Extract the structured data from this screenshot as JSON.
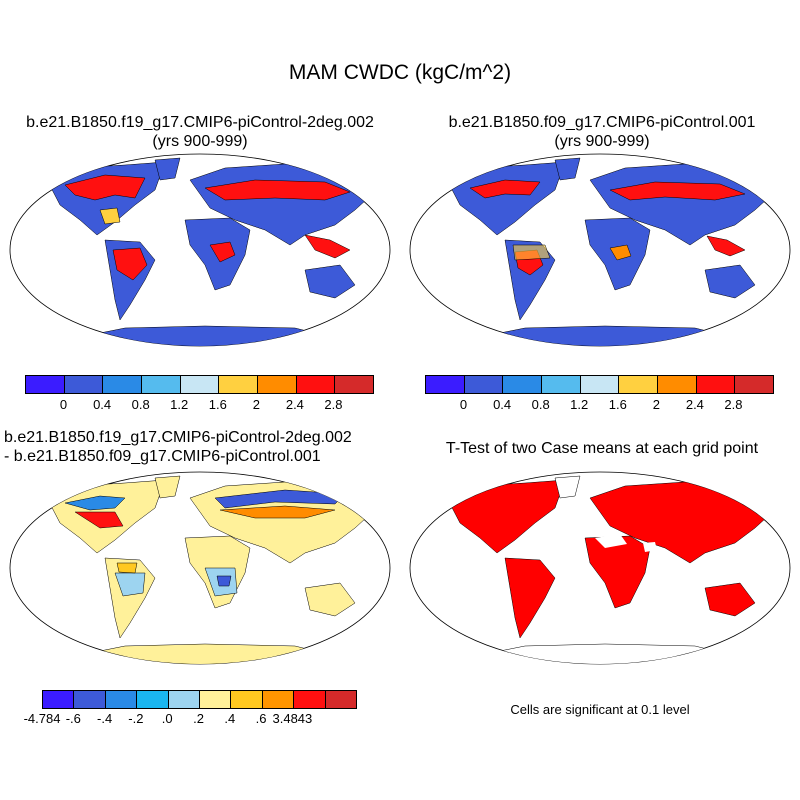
{
  "title": "MAM CWDC (kgC/m^2)",
  "panels": [
    {
      "id": "p1",
      "title_line1": "b.e21.B1850.f19_g17.CMIP6-piControl-2deg.002",
      "title_line2": "(yrs 900-999)"
    },
    {
      "id": "p2",
      "title_line1": "b.e21.B1850.f09_g17.CMIP6-piControl.001",
      "title_line2": "(yrs 900-999)"
    },
    {
      "id": "p3",
      "title_line1": "b.e21.B1850.f19_g17.CMIP6-piControl-2deg.002",
      "title_line2": "- b.e21.B1850.f09_g17.CMIP6-piControl.001"
    },
    {
      "id": "p4",
      "title_line1": "T-Test of two Case means at each grid point"
    }
  ],
  "colorbar_mean": {
    "colors": [
      "#3b1cff",
      "#3d5ad8",
      "#2a8ae6",
      "#55bbee",
      "#c8e6f4",
      "#ffd040",
      "#ff8c00",
      "#ff1010",
      "#d52a2a"
    ],
    "labels": [
      "0",
      "0.4",
      "0.8",
      "1.2",
      "1.6",
      "2",
      "2.4",
      "2.8"
    ]
  },
  "colorbar_diff": {
    "colors": [
      "#3b1cff",
      "#3d5ad8",
      "#2a8ae6",
      "#1ab6f0",
      "#9dd4f0",
      "#fff19a",
      "#ffc820",
      "#ff9500",
      "#ff1010",
      "#d52a2a"
    ],
    "labels": [
      "-4.784",
      "-.6",
      "-.4",
      "-.2",
      ".0",
      ".2",
      ".4",
      ".6",
      "3.4843"
    ]
  },
  "significance_note": "Cells are significant at 0.1 level",
  "map_colors": {
    "mean_ocean": "#ffffff",
    "mean_land": "#3d5ad8",
    "mean_high": "#ff1010",
    "diff_land": "#fff19a",
    "ttest_sig": "#ff0000"
  }
}
